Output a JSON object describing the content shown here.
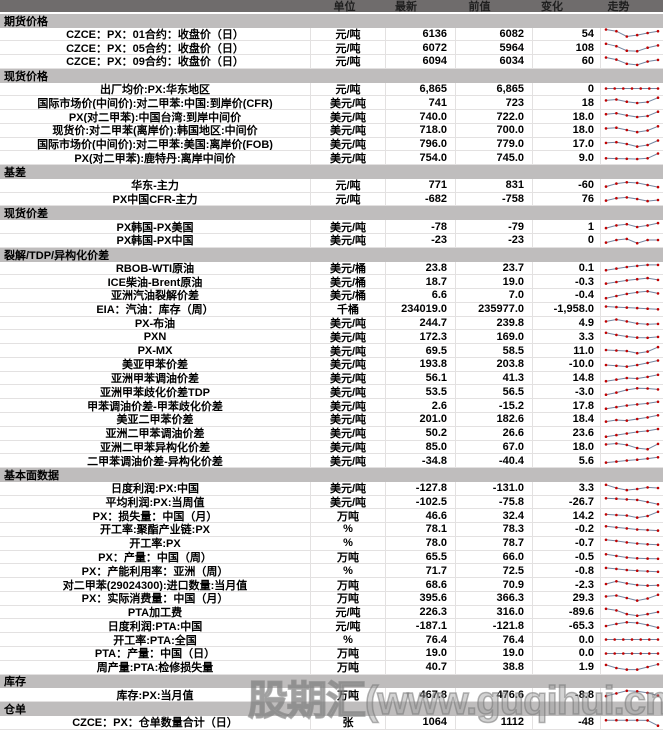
{
  "watermark": "股期汇(www.guqihui.cn)",
  "colors": {
    "header_bg": "#6f6c6c",
    "section_bg": "#bfbdbd",
    "spark_line": "#7486a0",
    "spark_marker": "#c00000"
  },
  "table": {
    "columns": {
      "unit": "单位",
      "latest": "最新",
      "previous": "前值",
      "change": "变化",
      "trend": "走势"
    },
    "sections": [
      {
        "title": "期货价格",
        "rows": [
          {
            "label": "CZCE：PX：01合约：收盘价（日）",
            "unit": "元/吨",
            "latest": "6136",
            "previous": "6082",
            "change": "54",
            "spark": [
              88,
              72,
              22,
              35,
              55,
              72
            ]
          },
          {
            "label": "CZCE：PX：05合约：收盘价（日）",
            "unit": "元/吨",
            "latest": "6072",
            "previous": "5964",
            "change": "108",
            "spark": [
              85,
              62,
              20,
              15,
              48,
              70
            ]
          },
          {
            "label": "CZCE：PX：09合约：收盘价（日）",
            "unit": "元/吨",
            "latest": "6094",
            "previous": "6034",
            "change": "60",
            "spark": [
              88,
              68,
              28,
              18,
              50,
              65
            ]
          }
        ]
      },
      {
        "title": "现货价格",
        "rows": [
          {
            "label": "出厂均价:PX:华东地区",
            "unit": "元/吨",
            "latest": "6,865",
            "previous": "6,865",
            "change": "0",
            "spark": [
              50,
              50,
              50,
              50,
              50,
              50,
              50
            ]
          },
          {
            "label": "国际市场价(中间价):对二甲苯:中国:到岸价(CFR)",
            "unit": "美元/吨",
            "latest": "741",
            "previous": "723",
            "change": "18",
            "spark": [
              70,
              78,
              58,
              45,
              55,
              95
            ]
          },
          {
            "label": "PX(对二甲苯):中国台湾:到岸中间价",
            "unit": "美元/吨",
            "latest": "740.0",
            "previous": "722.0",
            "change": "18.0",
            "spark": [
              72,
              80,
              60,
              45,
              55,
              95
            ]
          },
          {
            "label": "现货价:对二甲苯(离岸价):韩国地区:中间价",
            "unit": "美元/吨",
            "latest": "718.0",
            "previous": "700.0",
            "change": "18.0",
            "spark": [
              70,
              76,
              55,
              35,
              50,
              90
            ]
          },
          {
            "label": "国际市场价(中间价):对二甲苯:美国:离岸价(FOB)",
            "unit": "美元/吨",
            "latest": "796.0",
            "previous": "779.0",
            "change": "17.0",
            "spark": [
              65,
              72,
              55,
              30,
              45,
              88
            ]
          },
          {
            "label": "PX(对二甲苯):鹿特丹:离岸中间价",
            "unit": "美元/吨",
            "latest": "754.0",
            "previous": "745.0",
            "change": "9.0",
            "spark": [
              42,
              40,
              38,
              36,
              42,
              88
            ]
          }
        ]
      },
      {
        "title": "基差",
        "rows": [
          {
            "label": "华东-主力",
            "unit": "元/吨",
            "latest": "771",
            "previous": "831",
            "change": "-60",
            "spark": [
              40,
              68,
              80,
              75,
              55,
              35
            ]
          },
          {
            "label": "PX中国CFR-主力",
            "unit": "元/吨",
            "latest": "-682",
            "previous": "-758",
            "change": "76",
            "spark": [
              40,
              62,
              70,
              55,
              35,
              45
            ]
          }
        ]
      },
      {
        "title": "现货价差",
        "rows": [
          {
            "label": "PX韩国-PX美国",
            "unit": "美元/吨",
            "latest": "-78",
            "previous": "-79",
            "change": "1",
            "spark": [
              35,
              60,
              72,
              45,
              60,
              82
            ]
          },
          {
            "label": "PX韩国-PX中国",
            "unit": "美元/吨",
            "latest": "-23",
            "previous": "-23",
            "change": "0",
            "spark": [
              30,
              55,
              65,
              25,
              55,
              55
            ]
          }
        ]
      },
      {
        "title": "裂解/TDP/异构化价差",
        "rows": [
          {
            "label": "RBOB-WTI原油",
            "unit": "美元/桶",
            "latest": "23.8",
            "previous": "23.7",
            "change": "0.1",
            "spark": [
              25,
              40,
              55,
              65,
              75,
              75
            ]
          },
          {
            "label": "ICE柴油-Brent原油",
            "unit": "美元/桶",
            "latest": "18.7",
            "previous": "19.0",
            "change": "-0.3",
            "spark": [
              30,
              45,
              60,
              72,
              82,
              65
            ]
          },
          {
            "label": "亚洲汽油裂解价差",
            "unit": "美元/桶",
            "latest": "6.6",
            "previous": "7.0",
            "change": "-0.4",
            "spark": [
              25,
              45,
              65,
              80,
              90,
              70
            ]
          },
          {
            "label": "EIA：汽油：库存（周）",
            "unit": "千桶",
            "latest": "234019.0",
            "previous": "235977.0",
            "change": "-1,958.0",
            "spark": [
              78,
              73,
              68,
              63,
              58,
              52
            ]
          },
          {
            "label": "PX-布油",
            "unit": "美元/吨",
            "latest": "244.7",
            "previous": "239.8",
            "change": "4.9",
            "spark": [
              70,
              88,
              70,
              50,
              42,
              46
            ]
          },
          {
            "label": "PXN",
            "unit": "美元/吨",
            "latest": "172.3",
            "previous": "169.0",
            "change": "3.3",
            "spark": [
              85,
              65,
              50,
              40,
              38,
              46
            ]
          },
          {
            "label": "PX-MX",
            "unit": "美元/吨",
            "latest": "69.5",
            "previous": "58.5",
            "change": "11.0",
            "spark": [
              55,
              50,
              45,
              25,
              40,
              82
            ]
          },
          {
            "label": "美亚甲苯价差",
            "unit": "美元/吨",
            "latest": "193.8",
            "previous": "203.8",
            "change": "-10.0",
            "spark": [
              45,
              38,
              30,
              45,
              65,
              88
            ]
          },
          {
            "label": "亚洲甲苯调油价差",
            "unit": "美元/吨",
            "latest": "56.1",
            "previous": "41.3",
            "change": "14.8",
            "spark": [
              25,
              40,
              55,
              50,
              65,
              85
            ]
          },
          {
            "label": "亚洲甲苯歧化价差TDP",
            "unit": "美元/吨",
            "latest": "53.5",
            "previous": "56.5",
            "change": "-3.0",
            "spark": [
              20,
              40,
              65,
              80,
              78,
              70
            ]
          },
          {
            "label": "甲苯调油价差-甲苯歧化价差",
            "unit": "美元/吨",
            "latest": "2.6",
            "previous": "-15.2",
            "change": "17.8",
            "spark": [
              20,
              35,
              50,
              60,
              70,
              85
            ]
          },
          {
            "label": "美亚二甲苯价差",
            "unit": "美元/吨",
            "latest": "201.0",
            "previous": "182.6",
            "change": "18.4",
            "spark": [
              30,
              45,
              40,
              55,
              70,
              90
            ]
          },
          {
            "label": "亚洲二甲苯调油价差",
            "unit": "美元/吨",
            "latest": "50.2",
            "previous": "26.6",
            "change": "23.6",
            "spark": [
              20,
              35,
              50,
              65,
              75,
              92
            ]
          },
          {
            "label": "亚洲二甲苯异构化价差",
            "unit": "美元/吨",
            "latest": "85.0",
            "previous": "67.0",
            "change": "18.0",
            "spark": [
              70,
              78,
              65,
              35,
              25,
              75
            ]
          },
          {
            "label": "二甲苯调油价差-异构化价差",
            "unit": "美元/吨",
            "latest": "-34.8",
            "previous": "-40.4",
            "change": "5.6",
            "spark": [
              30,
              40,
              50,
              58,
              68,
              80
            ]
          }
        ]
      },
      {
        "title": "基本面数据",
        "rows": [
          {
            "label": "日度利润:PX:中国",
            "unit": "美元/吨",
            "latest": "-127.8",
            "previous": "-131.0",
            "change": "3.3",
            "spark": [
              85,
              55,
              35,
              45,
              60,
              55
            ]
          },
          {
            "label": "平均利润:PX:当周值",
            "unit": "美元/吨",
            "latest": "-102.5",
            "previous": "-75.8",
            "change": "-26.7",
            "spark": [
              80,
              76,
              70,
              65,
              45,
              25
            ]
          },
          {
            "label": "PX：损失量：中国（月）",
            "unit": "万吨",
            "latest": "46.6",
            "previous": "32.4",
            "change": "14.2",
            "spark": [
              60,
              55,
              50,
              30,
              45,
              85
            ]
          },
          {
            "label": "开工率:聚酯产业链:PX",
            "unit": "%",
            "latest": "78.1",
            "previous": "78.3",
            "change": "-0.2",
            "spark": [
              80,
              70,
              60,
              50,
              45,
              40
            ]
          },
          {
            "label": "开工率:PX",
            "unit": "%",
            "latest": "78.0",
            "previous": "78.7",
            "change": "-0.7",
            "spark": [
              85,
              75,
              60,
              50,
              42,
              38
            ]
          },
          {
            "label": "PX：产量：中国（周）",
            "unit": "万吨",
            "latest": "65.5",
            "previous": "66.0",
            "change": "-0.5",
            "spark": [
              80,
              65,
              50,
              42,
              40,
              38
            ]
          },
          {
            "label": "PX：产能利用率：亚洲（周）",
            "unit": "%",
            "latest": "71.7",
            "previous": "72.5",
            "change": "-0.8",
            "spark": [
              75,
              65,
              55,
              48,
              42,
              38
            ]
          },
          {
            "label": "对二甲苯(29024300):进口数量:当月值",
            "unit": "万吨",
            "latest": "68.6",
            "previous": "70.9",
            "change": "-2.3",
            "spark": [
              55,
              80,
              60,
              45,
              40,
              42
            ]
          },
          {
            "label": "PX：实际消费量：中国（月）",
            "unit": "万吨",
            "latest": "395.6",
            "previous": "366.3",
            "change": "29.3",
            "spark": [
              70,
              78,
              55,
              30,
              50,
              85
            ]
          },
          {
            "label": "PTA加工费",
            "unit": "元/吨",
            "latest": "226.3",
            "previous": "316.0",
            "change": "-89.6",
            "spark": [
              85,
              70,
              35,
              20,
              35,
              55
            ]
          },
          {
            "label": "日度利润:PTA:中国",
            "unit": "元/吨",
            "latest": "-187.1",
            "previous": "-121.8",
            "change": "-65.3",
            "spark": [
              45,
              65,
              80,
              75,
              55,
              30
            ]
          },
          {
            "label": "开工率:PTA:全国",
            "unit": "%",
            "latest": "76.4",
            "previous": "76.4",
            "change": "0.0",
            "spark": [
              50,
              50,
              50,
              50,
              50,
              50,
              50
            ]
          },
          {
            "label": "PTA：产量：中国（日）",
            "unit": "万吨",
            "latest": "19.0",
            "previous": "19.0",
            "change": "0.0",
            "spark": [
              50,
              50,
              50,
              50,
              50,
              50,
              50
            ]
          },
          {
            "label": "周产量:PTA:检修损失量",
            "unit": "万吨",
            "latest": "40.7",
            "previous": "38.8",
            "change": "1.9",
            "spark": [
              75,
              45,
              30,
              30,
              55,
              80
            ]
          }
        ]
      },
      {
        "title": "库存",
        "rows": [
          {
            "label": "库存:PX:当月值",
            "unit": "万吨",
            "latest": "467.8",
            "previous": "476.6",
            "change": "-8.8",
            "spark": [
              35,
              60,
              85,
              80,
              65,
              40
            ]
          }
        ]
      },
      {
        "title": "仓单",
        "rows": [
          {
            "label": "CZCE：PX：仓单数量合计（日）",
            "unit": "张",
            "latest": "1064",
            "previous": "1112",
            "change": "-48",
            "spark": [
              72,
              72,
              72,
              72,
              70,
              20
            ]
          }
        ]
      }
    ]
  }
}
